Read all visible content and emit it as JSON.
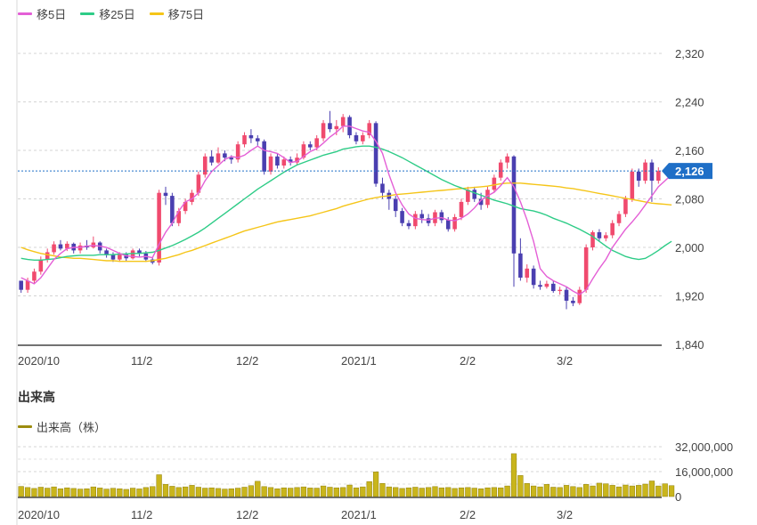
{
  "legend": {
    "ma5": "移5日",
    "ma25": "移25日",
    "ma75": "移75日"
  },
  "colors": {
    "ma5": "#e45fd6",
    "ma25": "#2ecc87",
    "ma75": "#f5c518",
    "up": "#f04a6e",
    "down": "#4a3fb0",
    "volume": "#c9b51c",
    "volume_edge": "#8f7f08",
    "current": "#1f6fc7"
  },
  "volume_section": {
    "title": "出来高",
    "legend": "出来高（株）"
  },
  "chart_data": [
    {
      "type": "candlestick",
      "x_tick_labels": [
        "2020/10",
        "11/2",
        "12/2",
        "2021/1",
        "2/2",
        "3/2"
      ],
      "y_tick_labels": [
        "2,320",
        "2,240",
        "2,160",
        "2,080",
        "2,000",
        "1,920",
        "1,840"
      ],
      "ylim": [
        1840,
        2320
      ],
      "grid": true,
      "legend_position": "top-left",
      "current_price": 2126,
      "current_price_label": "2,126",
      "candles": [
        [
          1945,
          1930,
          1945,
          1925
        ],
        [
          1930,
          1945,
          1950,
          1925
        ],
        [
          1945,
          1960,
          1965,
          1940
        ],
        [
          1960,
          1980,
          1985,
          1955
        ],
        [
          1980,
          1992,
          1998,
          1975
        ],
        [
          1992,
          2005,
          2010,
          1988
        ],
        [
          2005,
          1998,
          2012,
          1995
        ],
        [
          1998,
          2006,
          2010,
          1994
        ],
        [
          2006,
          1995,
          2008,
          1990
        ],
        [
          1995,
          2003,
          2008,
          1990
        ],
        [
          2003,
          2000,
          2012,
          1996
        ],
        [
          2000,
          2008,
          2018,
          1998
        ],
        [
          2008,
          1995,
          2010,
          1990
        ],
        [
          1995,
          1988,
          1998,
          1983
        ],
        [
          1988,
          1980,
          1992,
          1976
        ],
        [
          1980,
          1988,
          1992,
          1976
        ],
        [
          1988,
          1982,
          1992,
          1978
        ],
        [
          1982,
          1995,
          1998,
          1980
        ],
        [
          1995,
          1990,
          1998,
          1985
        ],
        [
          1990,
          1980,
          1994,
          1976
        ],
        [
          1980,
          1975,
          1984,
          1972
        ],
        [
          1975,
          2090,
          2095,
          1970
        ],
        [
          2090,
          2085,
          2100,
          2070
        ],
        [
          2085,
          2040,
          2090,
          2035
        ],
        [
          2040,
          2060,
          2065,
          2035
        ],
        [
          2060,
          2075,
          2080,
          2055
        ],
        [
          2075,
          2090,
          2095,
          2070
        ],
        [
          2090,
          2120,
          2125,
          2085
        ],
        [
          2120,
          2150,
          2155,
          2115
        ],
        [
          2150,
          2140,
          2160,
          2135
        ],
        [
          2140,
          2155,
          2165,
          2138
        ],
        [
          2155,
          2148,
          2160,
          2142
        ],
        [
          2148,
          2145,
          2152,
          2138
        ],
        [
          2145,
          2170,
          2175,
          2140
        ],
        [
          2170,
          2185,
          2190,
          2165
        ],
        [
          2185,
          2180,
          2195,
          2172
        ],
        [
          2180,
          2175,
          2185,
          2168
        ],
        [
          2175,
          2125,
          2178,
          2120
        ],
        [
          2125,
          2150,
          2155,
          2120
        ],
        [
          2150,
          2135,
          2155,
          2130
        ],
        [
          2135,
          2145,
          2150,
          2130
        ],
        [
          2145,
          2140,
          2150,
          2135
        ],
        [
          2140,
          2148,
          2155,
          2136
        ],
        [
          2148,
          2170,
          2175,
          2145
        ],
        [
          2170,
          2165,
          2175,
          2160
        ],
        [
          2165,
          2180,
          2185,
          2160
        ],
        [
          2180,
          2205,
          2210,
          2175
        ],
        [
          2205,
          2195,
          2225,
          2190
        ],
        [
          2195,
          2200,
          2210,
          2185
        ],
        [
          2200,
          2215,
          2220,
          2190
        ],
        [
          2215,
          2185,
          2218,
          2180
        ],
        [
          2185,
          2175,
          2190,
          2170
        ],
        [
          2175,
          2185,
          2190,
          2170
        ],
        [
          2185,
          2205,
          2210,
          2180
        ],
        [
          2205,
          2105,
          2208,
          2100
        ],
        [
          2105,
          2090,
          2115,
          2080
        ],
        [
          2090,
          2080,
          2095,
          2062
        ],
        [
          2080,
          2060,
          2085,
          2050
        ],
        [
          2060,
          2040,
          2065,
          2035
        ],
        [
          2040,
          2035,
          2045,
          2030
        ],
        [
          2035,
          2055,
          2060,
          2030
        ],
        [
          2055,
          2048,
          2062,
          2040
        ],
        [
          2048,
          2040,
          2055,
          2035
        ],
        [
          2040,
          2058,
          2062,
          2035
        ],
        [
          2058,
          2045,
          2062,
          2040
        ],
        [
          2045,
          2030,
          2050,
          2026
        ],
        [
          2030,
          2050,
          2055,
          2026
        ],
        [
          2050,
          2075,
          2080,
          2045
        ],
        [
          2075,
          2095,
          2100,
          2070
        ],
        [
          2095,
          2080,
          2100,
          2075
        ],
        [
          2080,
          2070,
          2090,
          2062
        ],
        [
          2070,
          2095,
          2100,
          2065
        ],
        [
          2095,
          2115,
          2120,
          2090
        ],
        [
          2115,
          2140,
          2145,
          2110
        ],
        [
          2140,
          2150,
          2155,
          2130
        ],
        [
          2150,
          1990,
          2152,
          1935
        ],
        [
          1990,
          1950,
          2015,
          1945
        ],
        [
          1950,
          1965,
          1972,
          1942
        ],
        [
          1965,
          1938,
          1970,
          1932
        ],
        [
          1938,
          1935,
          1945,
          1930
        ],
        [
          1935,
          1940,
          1945,
          1932
        ],
        [
          1940,
          1928,
          1945,
          1925
        ],
        [
          1928,
          1930,
          1935,
          1922
        ],
        [
          1930,
          1912,
          1935,
          1898
        ],
        [
          1912,
          1908,
          1918,
          1903
        ],
        [
          1908,
          1930,
          1935,
          1905
        ],
        [
          1930,
          2000,
          2005,
          1925
        ],
        [
          2000,
          2025,
          2028,
          1995
        ],
        [
          2025,
          2015,
          2030,
          2010
        ],
        [
          2015,
          2020,
          2025,
          2010
        ],
        [
          2020,
          2040,
          2045,
          2015
        ],
        [
          2040,
          2055,
          2060,
          2035
        ],
        [
          2055,
          2080,
          2085,
          2050
        ],
        [
          2080,
          2125,
          2130,
          2075
        ],
        [
          2125,
          2110,
          2130,
          2100
        ],
        [
          2110,
          2140,
          2145,
          2105
        ],
        [
          2140,
          2110,
          2145,
          2075
        ],
        [
          2110,
          2126,
          2132,
          2105
        ]
      ],
      "ma5": [
        1950,
        1945,
        1940,
        1950,
        1965,
        1980,
        1990,
        1998,
        2000,
        2000,
        2002,
        2003,
        2002,
        2000,
        1995,
        1990,
        1986,
        1985,
        1984,
        1985,
        1983,
        2005,
        2025,
        2040,
        2060,
        2075,
        2080,
        2090,
        2110,
        2125,
        2135,
        2145,
        2150,
        2148,
        2152,
        2160,
        2167,
        2160,
        2158,
        2155,
        2148,
        2140,
        2142,
        2150,
        2158,
        2163,
        2172,
        2182,
        2190,
        2200,
        2200,
        2196,
        2192,
        2190,
        2175,
        2155,
        2120,
        2090,
        2070,
        2055,
        2048,
        2046,
        2045,
        2048,
        2049,
        2045,
        2044,
        2048,
        2055,
        2065,
        2078,
        2085,
        2091,
        2102,
        2115,
        2100,
        2075,
        2045,
        2010,
        1965,
        1952,
        1945,
        1940,
        1935,
        1928,
        1922,
        1930,
        1948,
        1965,
        1980,
        2000,
        2015,
        2030,
        2042,
        2055,
        2070,
        2085,
        2100,
        2110,
        2120
      ],
      "ma25": [
        1982,
        1980,
        1979,
        1979,
        1980,
        1981,
        1983,
        1985,
        1986,
        1987,
        1987,
        1987,
        1988,
        1988,
        1988,
        1989,
        1989,
        1990,
        1990,
        1991,
        1992,
        1995,
        1999,
        2003,
        2008,
        2013,
        2019,
        2025,
        2032,
        2040,
        2048,
        2056,
        2064,
        2072,
        2080,
        2088,
        2096,
        2103,
        2110,
        2117,
        2124,
        2130,
        2136,
        2140,
        2144,
        2148,
        2152,
        2155,
        2158,
        2162,
        2164,
        2166,
        2167,
        2167,
        2165,
        2162,
        2158,
        2153,
        2148,
        2142,
        2136,
        2130,
        2124,
        2118,
        2112,
        2107,
        2102,
        2098,
        2094,
        2090,
        2086,
        2082,
        2078,
        2075,
        2072,
        2068,
        2064,
        2062,
        2060,
        2057,
        2053,
        2048,
        2044,
        2040,
        2035,
        2030,
        2024,
        2018,
        2010,
        2002,
        1995,
        1990,
        1985,
        1982,
        1980,
        1982,
        1988,
        1995,
        2003,
        2010
      ],
      "ma75": [
        2000,
        1996,
        1993,
        1990,
        1988,
        1986,
        1984,
        1983,
        1982,
        1982,
        1981,
        1980,
        1979,
        1978,
        1978,
        1977,
        1977,
        1977,
        1977,
        1977,
        1978,
        1980,
        1982,
        1985,
        1988,
        1992,
        1995,
        1999,
        2003,
        2007,
        2011,
        2015,
        2019,
        2023,
        2027,
        2030,
        2033,
        2036,
        2039,
        2042,
        2044,
        2046,
        2048,
        2050,
        2052,
        2055,
        2058,
        2061,
        2064,
        2068,
        2071,
        2074,
        2077,
        2080,
        2082,
        2084,
        2085,
        2087,
        2088,
        2089,
        2090,
        2091,
        2092,
        2093,
        2094,
        2095,
        2096,
        2097,
        2098,
        2099,
        2100,
        2101,
        2103,
        2105,
        2106,
        2106,
        2106,
        2105,
        2104,
        2103,
        2102,
        2101,
        2100,
        2098,
        2097,
        2095,
        2093,
        2091,
        2089,
        2087,
        2085,
        2083,
        2081,
        2079,
        2077,
        2075,
        2073,
        2072,
        2071,
        2070
      ]
    },
    {
      "type": "bar",
      "name": "出来高（株）",
      "x_tick_labels": [
        "2020/10",
        "11/2",
        "12/2",
        "2021/1",
        "2/2",
        "3/2"
      ],
      "y_tick_labels": [
        "32,000,000",
        "16,000,000",
        "0"
      ],
      "ylim": [
        0,
        32000000
      ],
      "values": [
        6.5,
        5.8,
        5.2,
        6.0,
        5.4,
        6.2,
        5.0,
        5.6,
        5.2,
        4.8,
        5.0,
        6.2,
        5.5,
        4.8,
        5.3,
        5.0,
        4.6,
        5.4,
        4.9,
        5.8,
        6.4,
        14.0,
        7.8,
        6.6,
        5.8,
        6.2,
        7.2,
        6.0,
        5.4,
        5.6,
        5.2,
        4.8,
        5.0,
        5.4,
        6.0,
        7.0,
        9.8,
        6.4,
        5.8,
        5.0,
        5.6,
        5.4,
        5.8,
        6.2,
        5.5,
        5.4,
        6.8,
        6.0,
        5.6,
        5.8,
        7.4,
        5.6,
        6.2,
        9.6,
        15.8,
        8.4,
        6.2,
        5.8,
        5.2,
        5.6,
        6.0,
        5.4,
        5.8,
        6.4,
        5.6,
        5.8,
        5.2,
        5.6,
        5.8,
        5.4,
        5.0,
        5.6,
        5.8,
        5.6,
        6.8,
        27.5,
        13.5,
        8.4,
        6.8,
        6.2,
        7.8,
        6.0,
        5.8,
        7.2,
        6.4,
        5.8,
        7.8,
        6.8,
        8.6,
        8.2,
        7.2,
        6.2,
        7.4,
        6.8,
        7.2,
        8.0,
        10.0,
        6.8,
        8.2,
        7.0
      ]
    }
  ]
}
